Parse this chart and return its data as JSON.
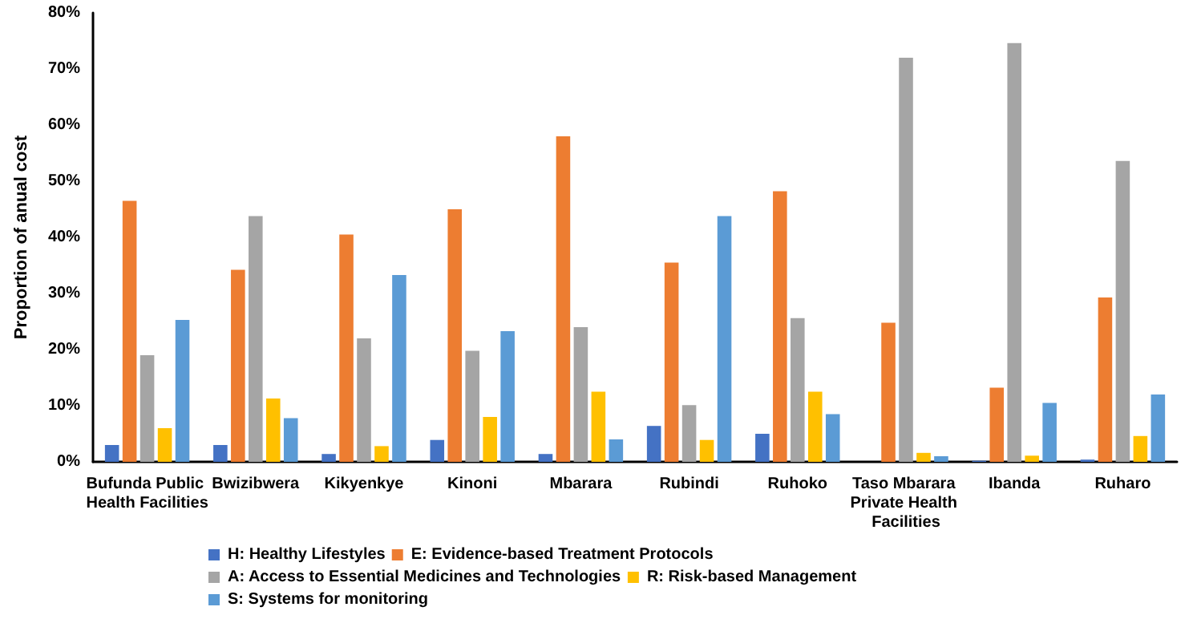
{
  "chart_data": {
    "type": "bar",
    "ylabel": "Proportion of anual cost",
    "categories": [
      "Bufunda Public Health Facilities",
      "Bwizibwera",
      "Kikyenkye",
      "Kinoni",
      "Mbarara",
      "Rubindi",
      "Ruhoko",
      "Taso Mbarara Private Health Facilities",
      "Ibanda",
      "Ruharo"
    ],
    "series": [
      {
        "name": "H: Healthy Lifestyles",
        "color": "#4472c4",
        "values": [
          3,
          3,
          1.4,
          3.9,
          1.4,
          6.4,
          5,
          0,
          0.2,
          0.4
        ]
      },
      {
        "name": "E: Evidence-based Treatment Protocols",
        "color": "#ed7d31",
        "values": [
          46.5,
          34.2,
          40.5,
          45,
          58,
          35.5,
          48.2,
          24.8,
          13.2,
          29.3
        ]
      },
      {
        "name": "A: Access to Essential Medicines and Technologies",
        "color": "#a5a5a5",
        "values": [
          19,
          43.8,
          22,
          19.8,
          24,
          10.1,
          25.6,
          72,
          74.6,
          53.6
        ]
      },
      {
        "name": "R: Risk-based Management",
        "color": "#ffc000",
        "values": [
          6,
          11.3,
          2.8,
          8,
          12.5,
          3.9,
          12.5,
          1.6,
          1.1,
          4.6
        ]
      },
      {
        "name": "S: Systems for monitoring",
        "color": "#5b9bd5",
        "values": [
          25.3,
          7.8,
          33.3,
          23.3,
          4,
          43.8,
          8.5,
          1,
          10.5,
          12
        ]
      }
    ],
    "ylim": [
      0,
      80
    ],
    "yticks": [
      {
        "value": 0,
        "label": "0%"
      },
      {
        "value": 10,
        "label": "10%"
      },
      {
        "value": 20,
        "label": "20%"
      },
      {
        "value": 30,
        "label": "30%"
      },
      {
        "value": 40,
        "label": "40%"
      },
      {
        "value": 50,
        "label": "50%"
      },
      {
        "value": 60,
        "label": "60%"
      },
      {
        "value": 70,
        "label": "70%"
      },
      {
        "value": 80,
        "label": "80%"
      }
    ],
    "grid": false,
    "legend": "bottom"
  }
}
